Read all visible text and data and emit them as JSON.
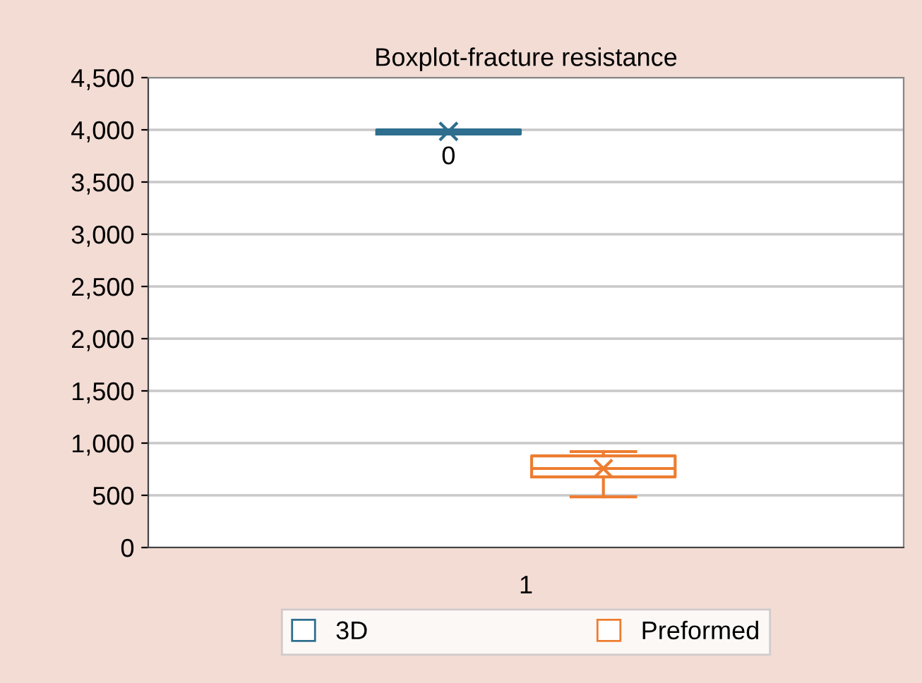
{
  "chart_data": {
    "type": "box",
    "title": "Boxplot-fracture resistance",
    "categories": [
      "1"
    ],
    "series": [
      {
        "name": "3D",
        "color": "#2e6e8e",
        "boxes": [
          {
            "low": 3960,
            "q1": 3960,
            "median": 3980,
            "q3": 4000,
            "high": 4000,
            "mean": 3985
          }
        ]
      },
      {
        "name": "Preformed",
        "color": "#ed7d31",
        "boxes": [
          {
            "low": 486,
            "q1": 676,
            "median": 757,
            "q3": 878,
            "high": 919,
            "mean": 757
          }
        ]
      }
    ],
    "annotations": [
      "0"
    ],
    "ylim": [
      0,
      4500
    ],
    "yticks": [
      {
        "value": 0,
        "label": "0"
      },
      {
        "value": 500,
        "label": "500"
      },
      {
        "value": 1000,
        "label": "1,000"
      },
      {
        "value": 1500,
        "label": "1,500"
      },
      {
        "value": 2000,
        "label": "2,000"
      },
      {
        "value": 2500,
        "label": "2,500"
      },
      {
        "value": 3000,
        "label": "3,000"
      },
      {
        "value": 3500,
        "label": "3,500"
      },
      {
        "value": 4000,
        "label": "4,000"
      },
      {
        "value": 4500,
        "label": "4,500"
      }
    ],
    "grid": "y",
    "legend": "bottom",
    "marker": "cross"
  }
}
